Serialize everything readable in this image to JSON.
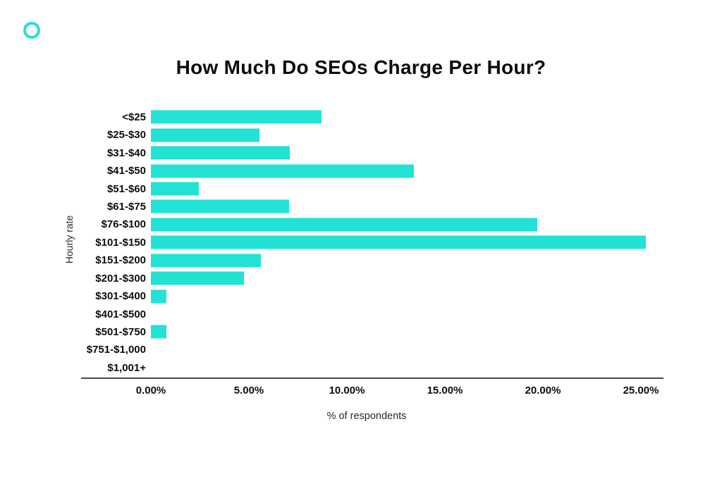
{
  "page": {
    "brand_color": "#22e2d6"
  },
  "chart_data": {
    "type": "bar",
    "orientation": "horizontal",
    "title": "How Much Do SEOs Charge Per Hour?",
    "xlabel": "% of respondents",
    "ylabel": "Hourly rate",
    "categories": [
      "<$25",
      "$25-$30",
      "$31-$40",
      "$41-$50",
      "$51-$60",
      "$61-$75",
      "$76-$100",
      "$101-$150",
      "$151-$200",
      "$201-$300",
      "$301-$400",
      "$401-$500",
      "$501-$750",
      "$751-$1,000",
      "$1,001+"
    ],
    "values": [
      8.7,
      5.55,
      7.1,
      13.4,
      2.45,
      7.05,
      19.7,
      25.25,
      5.6,
      4.75,
      0.8,
      0,
      0.8,
      0,
      0
    ],
    "x_ticks": [
      {
        "value": 0,
        "label": "0.00%"
      },
      {
        "value": 5,
        "label": "5.00%"
      },
      {
        "value": 10,
        "label": "10.00%"
      },
      {
        "value": 15,
        "label": "15.00%"
      },
      {
        "value": 20,
        "label": "20.00%"
      },
      {
        "value": 25,
        "label": "25.00%"
      }
    ],
    "xlim": [
      0,
      26.15
    ],
    "bar_color": "#22e2d6",
    "axis_color": "#4a4a4a",
    "grid": false,
    "legend": false
  }
}
